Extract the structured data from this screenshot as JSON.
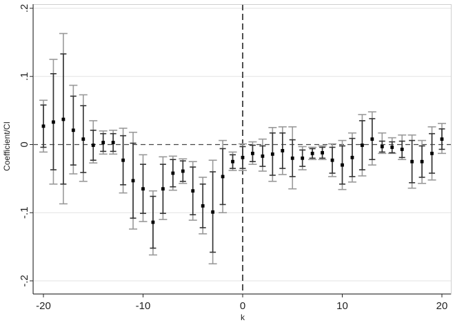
{
  "chart_data": {
    "type": "scatter",
    "title": "",
    "xlabel": "k",
    "ylabel": "Coefficient/CI",
    "xlim": [
      -21,
      21
    ],
    "ylim": [
      -0.2,
      0.2
    ],
    "xticks": [
      -20,
      -10,
      0,
      10,
      20
    ],
    "xtick_labels": [
      "-20",
      "-10",
      "0",
      "10",
      "20"
    ],
    "yticks": [
      0.2,
      0.1,
      0,
      -0.1,
      -0.2
    ],
    "ytick_labels": [
      ".2",
      ".1",
      "0",
      "-.1",
      "-.2"
    ],
    "grid": "horizontal",
    "reference_lines": {
      "y": 0,
      "x": 0,
      "style": "dashed"
    },
    "colors": {
      "point": "#000000",
      "ci90": "#333333",
      "ci95": "#999999",
      "grid": "#e2e2e2",
      "zero": "#444444"
    },
    "series": [
      {
        "x": [
          -20,
          -19,
          -18,
          -17,
          -16,
          -15,
          -14,
          -13,
          -12,
          -11,
          -10,
          -9,
          -8,
          -7,
          -6,
          -5,
          -4,
          -3,
          -2,
          -1,
          0,
          1,
          2,
          3,
          4,
          5,
          6,
          7,
          8,
          9,
          10,
          11,
          12,
          13,
          14,
          15,
          16,
          17,
          18,
          19,
          20
        ],
        "coef": [
          0.027,
          0.033,
          0.037,
          0.021,
          0.008,
          -0.001,
          0.003,
          0.003,
          -0.023,
          -0.053,
          -0.065,
          -0.114,
          -0.065,
          -0.042,
          -0.039,
          -0.068,
          -0.09,
          -0.099,
          -0.047,
          -0.025,
          -0.019,
          -0.013,
          -0.017,
          -0.014,
          -0.009,
          -0.02,
          -0.02,
          -0.013,
          -0.012,
          -0.023,
          -0.03,
          -0.019,
          -0.001,
          0.008,
          -0.003,
          -0.004,
          -0.007,
          -0.025,
          -0.025,
          -0.013,
          0.008
        ],
        "ci90_low": [
          -0.004,
          -0.037,
          -0.058,
          -0.03,
          -0.041,
          -0.023,
          -0.01,
          -0.01,
          -0.059,
          -0.108,
          -0.101,
          -0.152,
          -0.101,
          -0.062,
          -0.054,
          -0.103,
          -0.122,
          -0.158,
          -0.088,
          -0.035,
          -0.035,
          -0.025,
          -0.032,
          -0.045,
          -0.035,
          -0.047,
          -0.032,
          -0.02,
          -0.02,
          -0.042,
          -0.058,
          -0.047,
          -0.037,
          -0.022,
          -0.011,
          -0.012,
          -0.019,
          -0.056,
          -0.048,
          -0.042,
          -0.007
        ],
        "ci90_high": [
          0.058,
          0.104,
          0.133,
          0.071,
          0.057,
          0.021,
          0.016,
          0.016,
          0.013,
          0.002,
          -0.029,
          -0.076,
          -0.029,
          -0.022,
          -0.024,
          -0.033,
          -0.058,
          -0.04,
          -0.006,
          -0.015,
          -0.003,
          -0.001,
          -0.002,
          0.017,
          0.017,
          0.007,
          -0.008,
          -0.006,
          -0.004,
          -0.004,
          -0.002,
          0.009,
          0.035,
          0.038,
          0.005,
          0.004,
          0.005,
          0.006,
          -0.002,
          0.016,
          0.023
        ],
        "ci95_low": [
          -0.011,
          -0.058,
          -0.087,
          -0.043,
          -0.054,
          -0.027,
          -0.014,
          -0.014,
          -0.071,
          -0.124,
          -0.113,
          -0.162,
          -0.11,
          -0.067,
          -0.057,
          -0.111,
          -0.131,
          -0.175,
          -0.1,
          -0.038,
          -0.038,
          -0.029,
          -0.039,
          -0.054,
          -0.044,
          -0.065,
          -0.037,
          -0.022,
          -0.022,
          -0.047,
          -0.066,
          -0.055,
          -0.046,
          -0.03,
          -0.013,
          -0.013,
          -0.022,
          -0.064,
          -0.057,
          -0.052,
          -0.013
        ],
        "ci95_high": [
          0.065,
          0.125,
          0.163,
          0.087,
          0.073,
          0.035,
          0.02,
          0.021,
          0.024,
          0.018,
          -0.015,
          -0.068,
          -0.018,
          -0.017,
          -0.021,
          -0.025,
          -0.048,
          -0.023,
          0.006,
          -0.011,
          0.001,
          0.004,
          0.008,
          0.025,
          0.026,
          0.026,
          -0.003,
          -0.004,
          -0.002,
          0.001,
          0.006,
          0.017,
          0.044,
          0.048,
          0.017,
          0.01,
          0.014,
          0.014,
          0.006,
          0.026,
          0.031
        ]
      }
    ]
  }
}
